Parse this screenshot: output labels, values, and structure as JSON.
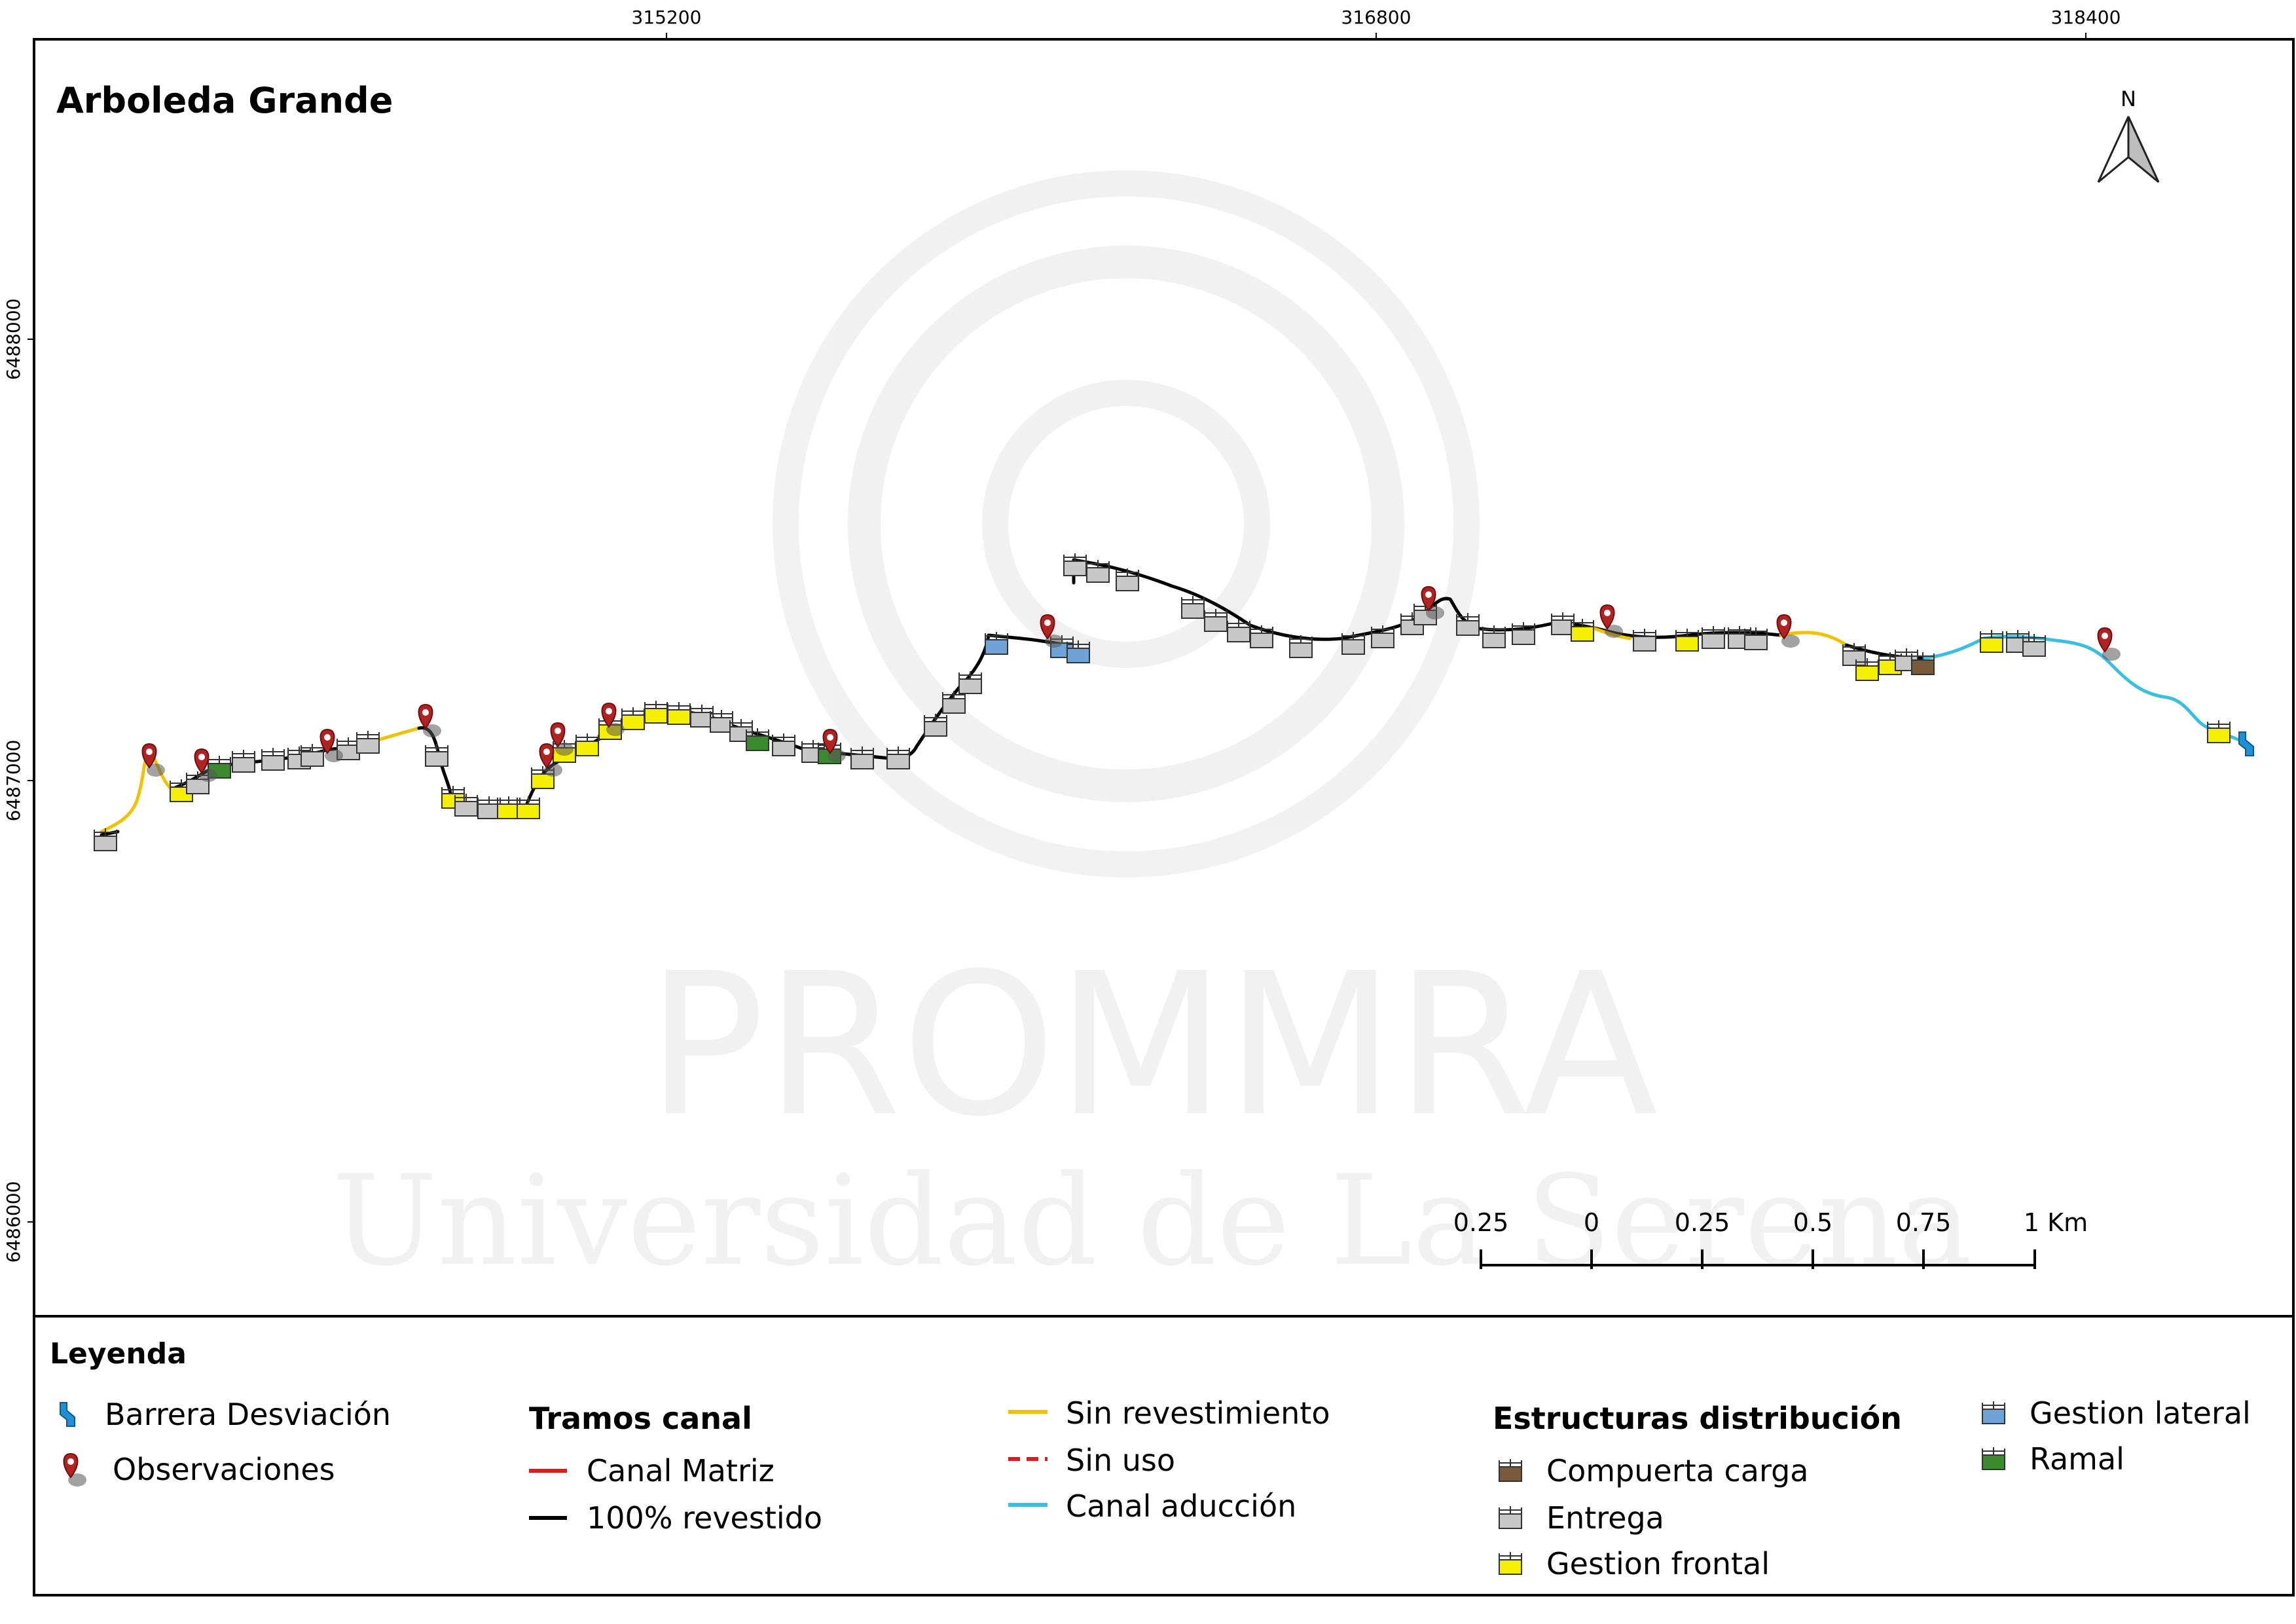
{
  "map": {
    "title": "Arboleda Grande",
    "north_label": "N",
    "x_ticks": [
      "315200",
      "316800",
      "318400"
    ],
    "y_ticks": [
      "6488000",
      "6487000",
      "6486000"
    ],
    "watermark": {
      "name": "PROMMRA",
      "institution": "Universidad de La Serena"
    }
  },
  "scale_bar": {
    "labels": [
      "0.25",
      "0",
      "0.25",
      "0.5",
      "0.75",
      "1 Km"
    ]
  },
  "legend": {
    "title": "Leyenda",
    "point_items": [
      {
        "label": "Barrera Desviación",
        "icon": "diversion-barrier-icon",
        "color": "#1e90d6"
      },
      {
        "label": "Observaciones",
        "icon": "map-pin-icon",
        "color": "#b22222"
      }
    ],
    "tramos": {
      "heading": "Tramos canal",
      "items": [
        {
          "label": "Canal Matriz",
          "color": "#e31a1c",
          "style": "solid"
        },
        {
          "label": "100% revestido",
          "color": "#000000",
          "style": "solid"
        },
        {
          "label": "Sin revestimiento",
          "color": "#f2c200",
          "style": "solid"
        },
        {
          "label": "Sin uso",
          "color": "#e31a1c",
          "style": "dashed"
        },
        {
          "label": "Canal aducción",
          "color": "#39bfe0",
          "style": "solid"
        }
      ]
    },
    "estructuras": {
      "heading": "Estructuras distribución",
      "items": [
        {
          "label": "Compuerta carga",
          "color": "#7a5a3c"
        },
        {
          "label": "Entrega",
          "color": "#c8c8c8"
        },
        {
          "label": "Gestion frontal",
          "color": "#f5f000"
        },
        {
          "label": "Gestion lateral",
          "color": "#6fa3d8"
        },
        {
          "label": "Ramal",
          "color": "#3c8a2e"
        }
      ]
    }
  }
}
